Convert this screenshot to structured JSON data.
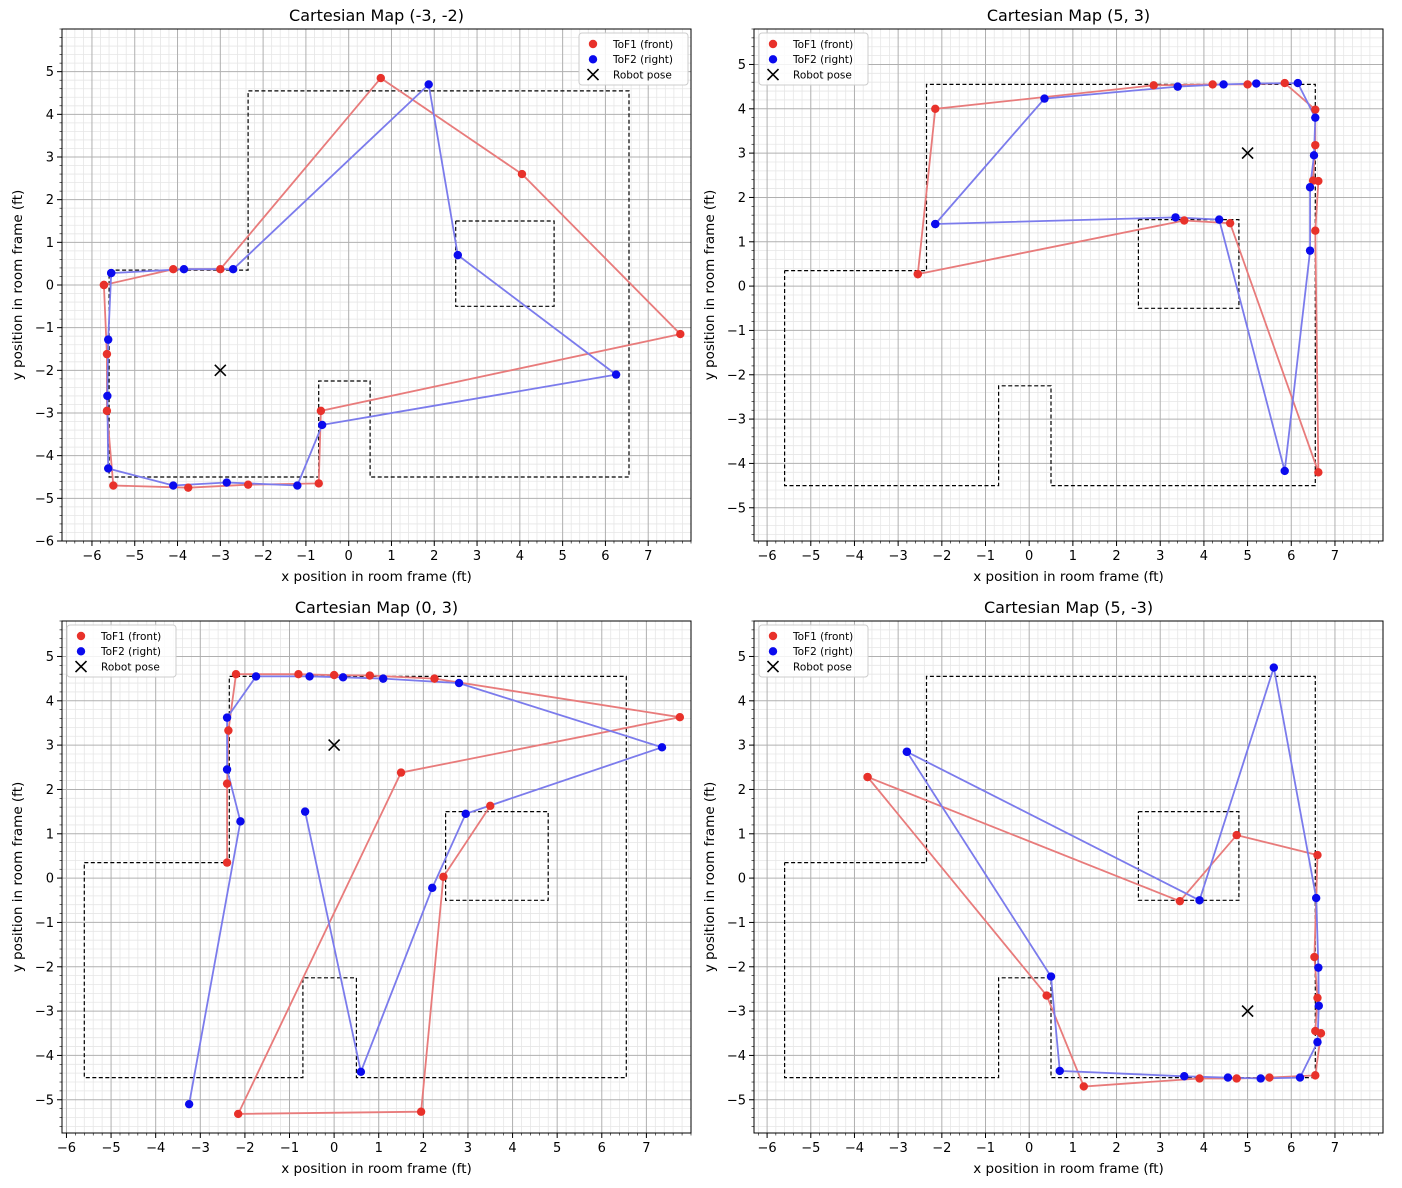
{
  "chart_data": [
    {
      "type": "scatter",
      "title": "Cartesian Map (-3, -2)",
      "xlabel": "x position in room frame (ft)",
      "ylabel": "y position in room frame (ft)",
      "xlim": [
        -6.7,
        8.0
      ],
      "ylim": [
        -6.0,
        6.0
      ],
      "xticks": [
        -6,
        -5,
        -4,
        -3,
        -2,
        -1,
        0,
        1,
        2,
        3,
        4,
        5,
        6,
        7
      ],
      "yticks": [
        -6,
        -5,
        -4,
        -3,
        -2,
        -1,
        0,
        1,
        2,
        3,
        4,
        5
      ],
      "grid": true,
      "legend_position": "top-right",
      "robot_pose": [
        -3,
        -2
      ],
      "series": [
        {
          "name": "ToF1 (front)",
          "color": "#e8312a",
          "line_color": "#e87b7b",
          "x": [
            -5.72,
            -5.65,
            -5.65,
            -5.5,
            -3.75,
            -2.35,
            -0.7,
            -0.65,
            7.75,
            4.05,
            0.75,
            -3.0,
            -4.1,
            -5.72
          ],
          "y": [
            0.0,
            -1.62,
            -2.95,
            -4.7,
            -4.75,
            -4.68,
            -4.65,
            -2.95,
            -1.15,
            2.6,
            4.85,
            0.37,
            0.37,
            0.0
          ]
        },
        {
          "name": "ToF2 (right)",
          "color": "#0a0aee",
          "line_color": "#7b7bec",
          "x": [
            -5.55,
            -5.62,
            -5.64,
            -5.62,
            -4.1,
            -2.85,
            -1.2,
            -0.62,
            6.25,
            2.55,
            1.87,
            -2.7,
            -3.85,
            -5.55
          ],
          "y": [
            0.28,
            -1.28,
            -2.6,
            -4.3,
            -4.7,
            -4.63,
            -4.7,
            -3.28,
            -2.1,
            0.7,
            4.7,
            0.37,
            0.37,
            0.28
          ]
        }
      ]
    },
    {
      "type": "scatter",
      "title": "Cartesian Map (5, 3)",
      "xlabel": "x position in room frame (ft)",
      "ylabel": "y position in room frame (ft)",
      "xlim": [
        -6.3,
        8.1
      ],
      "ylim": [
        -5.75,
        5.8
      ],
      "xticks": [
        -6,
        -5,
        -4,
        -3,
        -2,
        -1,
        0,
        1,
        2,
        3,
        4,
        5,
        6,
        7
      ],
      "yticks": [
        -5,
        -4,
        -3,
        -2,
        -1,
        0,
        1,
        2,
        3,
        4,
        5
      ],
      "grid": true,
      "legend_position": "top-left",
      "robot_pose": [
        5,
        3
      ],
      "series": [
        {
          "name": "ToF1 (front)",
          "color": "#e8312a",
          "line_color": "#e87b7b",
          "x": [
            -2.55,
            -2.15,
            2.85,
            4.2,
            5.0,
            5.85,
            6.55,
            6.55,
            6.5,
            6.62,
            6.55,
            6.62,
            4.6,
            3.55,
            -2.55
          ],
          "y": [
            0.27,
            4.0,
            4.53,
            4.55,
            4.55,
            4.58,
            3.98,
            3.18,
            2.38,
            2.37,
            1.25,
            -4.2,
            1.42,
            1.48,
            0.27
          ]
        },
        {
          "name": "ToF2 (right)",
          "color": "#0a0aee",
          "line_color": "#7b7bec",
          "x": [
            -2.15,
            0.35,
            3.4,
            4.45,
            5.2,
            6.15,
            6.55,
            6.52,
            6.43,
            6.43,
            5.85,
            4.35,
            3.35,
            -2.15
          ],
          "y": [
            1.4,
            4.23,
            4.5,
            4.55,
            4.57,
            4.58,
            3.8,
            2.95,
            2.23,
            0.8,
            -4.17,
            1.5,
            1.55,
            1.4
          ]
        }
      ]
    },
    {
      "type": "scatter",
      "title": "Cartesian Map (0, 3)",
      "xlabel": "x position in room frame (ft)",
      "ylabel": "y position in room frame (ft)",
      "xlim": [
        -6.1,
        8.0
      ],
      "ylim": [
        -5.75,
        5.8
      ],
      "xticks": [
        -6,
        -5,
        -4,
        -3,
        -2,
        -1,
        0,
        1,
        2,
        3,
        4,
        5,
        6,
        7
      ],
      "yticks": [
        -5,
        -4,
        -3,
        -2,
        -1,
        0,
        1,
        2,
        3,
        4,
        5
      ],
      "grid": true,
      "legend_position": "top-left",
      "robot_pose": [
        0,
        3
      ],
      "series": [
        {
          "name": "ToF1 (front)",
          "color": "#e8312a",
          "line_color": "#e87b7b",
          "x": [
            -2.4,
            -2.4,
            -2.37,
            -2.2,
            -0.8,
            0.0,
            0.8,
            2.25,
            7.75,
            1.5,
            -2.15,
            1.95,
            2.45,
            3.5
          ],
          "y": [
            0.35,
            2.13,
            3.33,
            4.6,
            4.6,
            4.58,
            4.57,
            4.5,
            3.63,
            2.38,
            -5.32,
            -5.27,
            0.03,
            1.63
          ]
        },
        {
          "name": "ToF2 (right)",
          "color": "#0a0aee",
          "line_color": "#7b7bec",
          "x": [
            -3.25,
            -2.1,
            -2.4,
            -2.4,
            -1.75,
            -0.55,
            0.2,
            1.1,
            2.8,
            7.35,
            2.95,
            2.2,
            0.6,
            -0.65
          ],
          "y": [
            -5.1,
            1.28,
            2.45,
            3.62,
            4.55,
            4.55,
            4.53,
            4.5,
            4.4,
            2.95,
            1.45,
            -0.22,
            -4.37,
            1.5
          ]
        }
      ]
    },
    {
      "type": "scatter",
      "title": "Cartesian Map (5, -3)",
      "xlabel": "x position in room frame (ft)",
      "ylabel": "y position in room frame (ft)",
      "xlim": [
        -6.3,
        8.1
      ],
      "ylim": [
        -5.75,
        5.8
      ],
      "xticks": [
        -6,
        -5,
        -4,
        -3,
        -2,
        -1,
        0,
        1,
        2,
        3,
        4,
        5,
        6,
        7
      ],
      "yticks": [
        -5,
        -4,
        -3,
        -2,
        -1,
        0,
        1,
        2,
        3,
        4,
        5
      ],
      "grid": true,
      "legend_position": "top-left",
      "robot_pose": [
        5,
        -3
      ],
      "series": [
        {
          "name": "ToF1 (front)",
          "color": "#e8312a",
          "line_color": "#e87b7b",
          "x": [
            -3.7,
            0.4,
            1.25,
            3.9,
            4.75,
            5.5,
            6.55,
            6.68,
            6.55,
            6.6,
            6.53,
            6.6,
            4.75,
            3.45,
            -3.7
          ],
          "y": [
            2.28,
            -2.65,
            -4.7,
            -4.52,
            -4.52,
            -4.5,
            -4.45,
            -3.5,
            -3.45,
            -2.7,
            -1.78,
            0.52,
            0.97,
            -0.52,
            2.28
          ]
        },
        {
          "name": "ToF2 (right)",
          "color": "#0a0aee",
          "line_color": "#7b7bec",
          "x": [
            -2.8,
            0.5,
            0.7,
            3.55,
            4.55,
            5.3,
            6.2,
            6.6,
            6.63,
            6.62,
            6.57,
            5.6,
            3.9,
            -2.8
          ],
          "y": [
            2.85,
            -2.22,
            -4.35,
            -4.47,
            -4.5,
            -4.52,
            -4.5,
            -3.7,
            -2.88,
            -2.02,
            -0.45,
            4.75,
            -0.5,
            2.85
          ]
        }
      ]
    }
  ],
  "legend": {
    "front": "ToF1 (front)",
    "right": "ToF2 (right)",
    "pose": "Robot pose"
  },
  "walls": {
    "outer": [
      [
        -5.6,
        0.35
      ],
      [
        -2.35,
        0.35
      ],
      [
        -2.35,
        4.55
      ],
      [
        6.55,
        4.55
      ],
      [
        6.55,
        -4.5
      ],
      [
        0.5,
        -4.5
      ],
      [
        0.5,
        -2.25
      ],
      [
        -0.7,
        -2.25
      ],
      [
        -0.7,
        -4.5
      ],
      [
        -5.6,
        -4.5
      ],
      [
        -5.6,
        0.35
      ]
    ],
    "inner_box": [
      [
        2.5,
        1.5
      ],
      [
        4.8,
        1.5
      ],
      [
        4.8,
        -0.5
      ],
      [
        2.5,
        -0.5
      ],
      [
        2.5,
        1.5
      ]
    ]
  },
  "colors": {
    "axes_border": "#000000",
    "grid_major": "#b0b0b0",
    "grid_minor": "#e6e6e6",
    "pose_marker": "#000000"
  }
}
